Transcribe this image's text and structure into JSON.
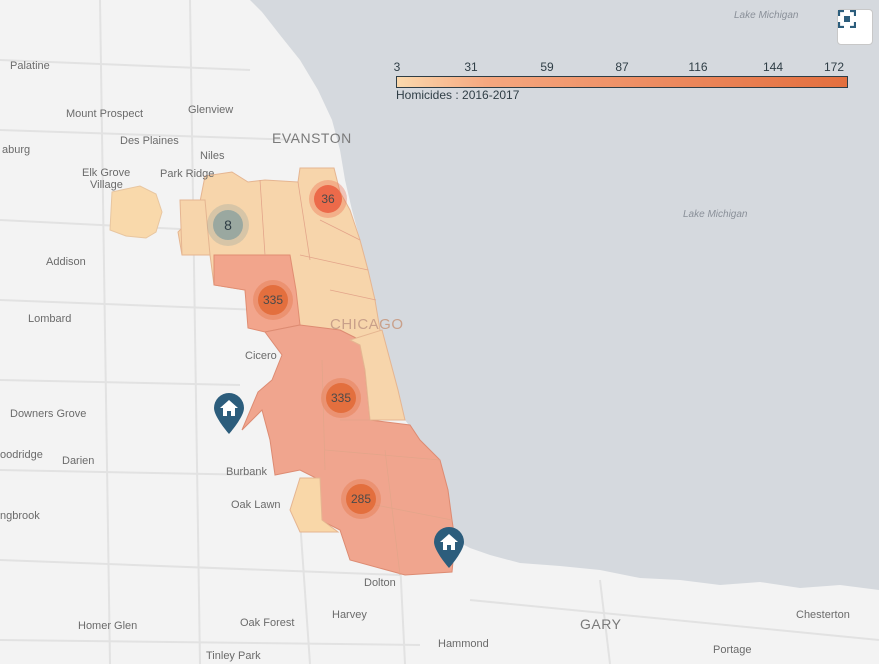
{
  "map": {
    "places": [
      {
        "id": "palatine",
        "label": "Palatine"
      },
      {
        "id": "mount-prospect",
        "label": "Mount Prospect"
      },
      {
        "id": "glenview",
        "label": "Glenview"
      },
      {
        "id": "des-plaines",
        "label": "Des Plaines"
      },
      {
        "id": "niles",
        "label": "Niles"
      },
      {
        "id": "evanston",
        "label": "EVANSTON"
      },
      {
        "id": "aburg",
        "label": "aburg"
      },
      {
        "id": "elk-grove",
        "label": "Elk Grove"
      },
      {
        "id": "village",
        "label": "Village"
      },
      {
        "id": "park-ridge",
        "label": "Park Ridge"
      },
      {
        "id": "addison",
        "label": "Addison"
      },
      {
        "id": "lombard",
        "label": "Lombard"
      },
      {
        "id": "chicago",
        "label": "CHICAGO"
      },
      {
        "id": "cicero",
        "label": "Cicero"
      },
      {
        "id": "downers-grove",
        "label": "Downers Grove"
      },
      {
        "id": "woodridge",
        "label": "oodridge"
      },
      {
        "id": "darien",
        "label": "Darien"
      },
      {
        "id": "burbank",
        "label": "Burbank"
      },
      {
        "id": "oak-lawn",
        "label": "Oak Lawn"
      },
      {
        "id": "bolingbrook",
        "label": "ngbrook"
      },
      {
        "id": "dolton",
        "label": "Dolton"
      },
      {
        "id": "harvey",
        "label": "Harvey"
      },
      {
        "id": "homer-glen",
        "label": "Homer Glen"
      },
      {
        "id": "oak-forest",
        "label": "Oak Forest"
      },
      {
        "id": "hammond",
        "label": "Hammond"
      },
      {
        "id": "gary",
        "label": "GARY"
      },
      {
        "id": "chesterton",
        "label": "Chesterton"
      },
      {
        "id": "portage",
        "label": "Portage"
      },
      {
        "id": "tinley-park",
        "label": "Tinley Park"
      },
      {
        "id": "lake-michigan-top",
        "label": "Lake Michigan"
      },
      {
        "id": "lake-michigan-mid",
        "label": "Lake Michigan"
      }
    ],
    "clusters": [
      {
        "id": "north-far",
        "count": "36",
        "color": "#ec6a4a"
      },
      {
        "id": "northwest",
        "count": "8",
        "color": "#9aa8a0"
      },
      {
        "id": "west",
        "count": "335",
        "color": "#e36f3e"
      },
      {
        "id": "south-central",
        "count": "335",
        "color": "#e36f3e"
      },
      {
        "id": "far-south",
        "count": "285",
        "color": "#e36f3e"
      }
    ],
    "markers": [
      {
        "id": "home-west",
        "icon": "home-icon",
        "color": "#2c5d7c"
      },
      {
        "id": "home-southeast",
        "icon": "home-icon",
        "color": "#2c5d7c"
      }
    ]
  },
  "legend": {
    "ticks": [
      "3",
      "31",
      "59",
      "87",
      "116",
      "144",
      "172"
    ],
    "title": "Homicides : 2016-2017",
    "color_low": "#fbd9ad",
    "color_high": "#e36f3e"
  },
  "controls": {
    "fullscreen_icon": "fullscreen-icon"
  }
}
